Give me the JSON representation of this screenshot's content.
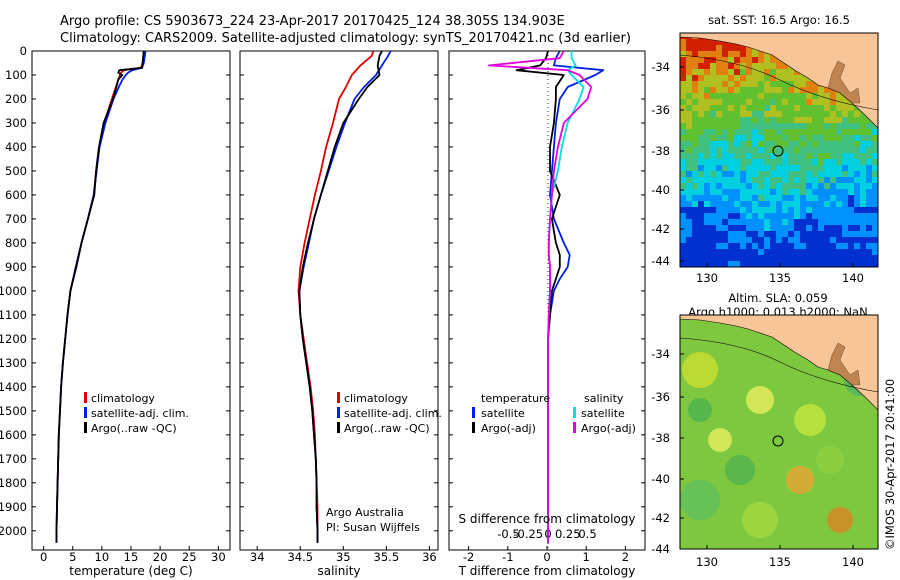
{
  "header": {
    "line1": "Argo profile: CS 5903673_224 23-Apr-2017 20170425_124 38.305S 134.903E",
    "line2": "Climatology: CARS2009. Satellite-adjusted climatology: synTS_20170421.nc (3d earlier)"
  },
  "colors": {
    "climatology": "#e00000",
    "satellite_adj": "#0020e0",
    "argo": "#000000",
    "sat_salinity": "#00e0e0",
    "argo_salinity": "#e000e0",
    "land": "#f7c598"
  },
  "axes": {
    "depth_ticks": [
      "0",
      "100",
      "200",
      "300",
      "400",
      "500",
      "600",
      "700",
      "800",
      "900",
      "1000",
      "1100",
      "1200",
      "1300",
      "1400",
      "1500",
      "1600",
      "1700",
      "1800",
      "1900",
      "2000"
    ],
    "temperature": {
      "xlabel": "temperature (deg C)",
      "xlim": [
        -2,
        32
      ],
      "xticks": [
        "0",
        "5",
        "10",
        "15",
        "20",
        "25",
        "30"
      ]
    },
    "salinity": {
      "xlabel": "salinity",
      "xlim": [
        33.8,
        36.1
      ],
      "xticks": [
        "34",
        "34.5",
        "35",
        "35.5",
        "36"
      ]
    },
    "difference": {
      "xlabel_bottom": "T difference from climatology",
      "xlabel_top": "S difference from climatology",
      "xticks_bottom": [
        "-2",
        "-1",
        "0",
        "1",
        "2"
      ],
      "xticks_top": [
        "-0.5",
        "-0.25",
        "0",
        "0.25",
        "0.5"
      ],
      "xlim": [
        -2.5,
        2.5
      ]
    }
  },
  "legend_tp": {
    "climatology": "climatology",
    "satellite": "satellite-adj. clim.",
    "argo": "Argo(..raw -QC)"
  },
  "legend_sal": {
    "climatology": "climatology",
    "satellite": "satellite-adj. clim.",
    "argo": "Argo(..raw -QC)",
    "credit1": "Argo Australia",
    "credit2": "PI: Susan Wijffels"
  },
  "legend_diff": {
    "temp_head": "temperature",
    "sal_head": "salinity",
    "sat1": "satellite",
    "argo1": "Argo(-adj)",
    "sat2": "satellite",
    "argo2": "Argo(-adj)"
  },
  "maps": {
    "sst_title": "sat. SST: 16.5 Argo: 16.5",
    "sla_title1": "Altim. SLA: 0.059",
    "sla_title2": "Argo h1000: 0.013 h2000: NaN",
    "yticks": [
      "-34",
      "-36",
      "-38",
      "-40",
      "-42",
      "-44"
    ],
    "xticks": [
      "130",
      "135",
      "140"
    ],
    "credit": "©IMOS 30-Apr-2017 20:41:00"
  },
  "chart_data": [
    {
      "type": "line",
      "title": "",
      "xlabel": "temperature (deg C)",
      "ylabel": "",
      "xlim": [
        -2,
        32
      ],
      "ylim": [
        2080,
        0
      ],
      "y": [
        0,
        50,
        70,
        80,
        90,
        100,
        120,
        150,
        200,
        300,
        400,
        500,
        600,
        700,
        800,
        900,
        1000,
        1100,
        1200,
        1300,
        1400,
        1500,
        1600,
        1700,
        1800,
        1900,
        2000,
        2050
      ],
      "series": [
        {
          "name": "climatology",
          "values": [
            17.2,
            17.0,
            16.7,
            13.8,
            13.3,
            13.1,
            12.8,
            12.4,
            11.7,
            10.4,
            9.5,
            9.0,
            8.6,
            7.6,
            6.5,
            5.6,
            4.6,
            4.1,
            3.7,
            3.3,
            3.0,
            2.8,
            2.6,
            2.5,
            2.4,
            2.3,
            2.2,
            2.2
          ]
        },
        {
          "name": "satellite-adj. clim.",
          "values": [
            17.5,
            17.2,
            16.9,
            15.2,
            14.5,
            14.1,
            13.5,
            12.9,
            12.0,
            10.6,
            9.6,
            9.1,
            8.6,
            7.6,
            6.5,
            5.5,
            4.6,
            4.1,
            3.7,
            3.3,
            3.0,
            2.8,
            2.6,
            2.5,
            2.4,
            2.3,
            2.2,
            2.2
          ]
        },
        {
          "name": "Argo(..raw -QC)",
          "values": [
            17.2,
            17.0,
            16.9,
            13.0,
            12.8,
            13.5,
            12.8,
            12.5,
            11.9,
            10.3,
            9.5,
            9.0,
            8.7,
            7.6,
            6.5,
            5.6,
            4.6,
            4.1,
            3.7,
            3.3,
            3.0,
            2.8,
            2.6,
            2.5,
            2.4,
            2.3,
            2.2,
            2.2
          ]
        }
      ]
    },
    {
      "type": "line",
      "title": "",
      "xlabel": "salinity",
      "ylabel": "",
      "xlim": [
        33.8,
        36.1
      ],
      "ylim": [
        2080,
        0
      ],
      "y": [
        0,
        20,
        60,
        100,
        150,
        200,
        300,
        400,
        500,
        600,
        700,
        800,
        900,
        1000,
        1100,
        1200,
        1300,
        1400,
        1500,
        1600,
        1700,
        1800,
        1900,
        2000,
        2050
      ],
      "series": [
        {
          "name": "climatology",
          "values": [
            35.35,
            35.33,
            35.2,
            35.1,
            35.03,
            34.95,
            34.88,
            34.8,
            34.74,
            34.67,
            34.61,
            34.55,
            34.5,
            34.48,
            34.5,
            34.54,
            34.58,
            34.62,
            34.65,
            34.67,
            34.68,
            34.69,
            34.7,
            34.7,
            34.7
          ]
        },
        {
          "name": "satellite-adj. clim.",
          "values": [
            35.55,
            35.52,
            35.45,
            35.38,
            35.24,
            35.13,
            35.02,
            34.92,
            34.83,
            34.74,
            34.66,
            34.6,
            34.54,
            34.49,
            34.5,
            34.53,
            34.57,
            34.61,
            34.64,
            34.66,
            34.68,
            34.69,
            34.69,
            34.7,
            34.7
          ]
        },
        {
          "name": "Argo(..raw -QC)",
          "values": [
            35.45,
            35.42,
            35.4,
            35.42,
            35.28,
            35.18,
            35.0,
            34.9,
            34.82,
            34.74,
            34.66,
            34.59,
            34.53,
            34.49,
            34.5,
            34.53,
            34.57,
            34.61,
            34.64,
            34.66,
            34.68,
            34.69,
            34.69,
            34.7,
            34.7
          ]
        }
      ]
    },
    {
      "type": "line",
      "title": "",
      "xlabel": "T difference from climatology",
      "ylabel": "",
      "xlim": [
        -2.5,
        2.5
      ],
      "ylim": [
        2080,
        0
      ],
      "y": [
        0,
        30,
        60,
        80,
        100,
        150,
        200,
        300,
        400,
        500,
        600,
        700,
        800,
        850,
        900,
        950,
        1000,
        1100,
        1200,
        1400,
        1600,
        1800,
        2000,
        2050
      ],
      "series": [
        {
          "name": "temperature satellite",
          "values": [
            0.3,
            0.2,
            0.15,
            1.4,
            1.2,
            0.5,
            0.3,
            0.2,
            0.15,
            0.1,
            0.05,
            0.15,
            0.4,
            0.55,
            0.5,
            0.3,
            0.15,
            0.05,
            0.0,
            0.0,
            0.0,
            0.0,
            0.0,
            0.0
          ]
        },
        {
          "name": "temperature Argo(-adj)",
          "values": [
            0.0,
            -0.05,
            -0.2,
            -0.8,
            0.4,
            0.2,
            0.2,
            0.15,
            0.05,
            0.05,
            0.3,
            0.1,
            0.2,
            0.3,
            0.3,
            0.2,
            0.1,
            0.05,
            0.0,
            0.0,
            0.0,
            0.0,
            0.0,
            0.0
          ]
        },
        {
          "name": "salinity satellite",
          "values": [
            0.6,
            0.6,
            0.7,
            0.5,
            0.6,
            0.9,
            0.8,
            0.5,
            0.35,
            0.25,
            0.1,
            0.05,
            0.02,
            0.02,
            0.05,
            0.05,
            0.05,
            0.02,
            0.0,
            0.0,
            0.0,
            0.0,
            0.0,
            0.0
          ]
        },
        {
          "name": "salinity Argo(-adj)",
          "values": [
            0.4,
            0.3,
            -1.5,
            0.5,
            0.8,
            1.1,
            1.0,
            0.4,
            0.25,
            0.15,
            0.1,
            0.05,
            0.02,
            0.02,
            0.05,
            0.05,
            0.05,
            0.02,
            0.0,
            0.0,
            0.0,
            0.0,
            0.0,
            0.0
          ]
        }
      ]
    }
  ]
}
